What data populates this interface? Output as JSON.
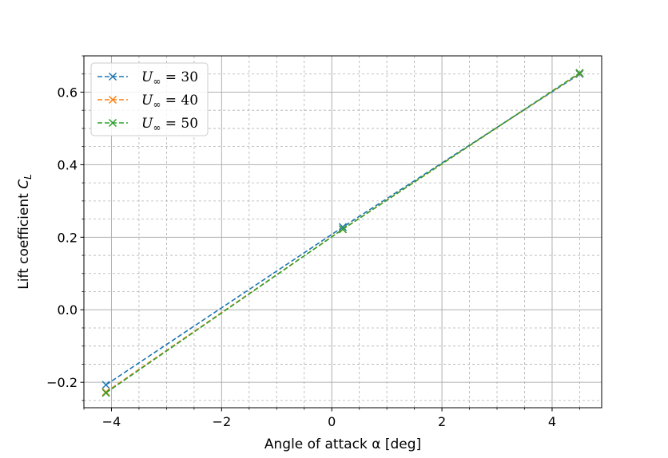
{
  "chart_data": {
    "type": "line",
    "title": "",
    "xlabel": "Angle of attack α [deg]",
    "ylabel": "Lift coefficient C_L",
    "xlim": [
      -4.5,
      4.9
    ],
    "ylim": [
      -0.27,
      0.7
    ],
    "x_ticks": [
      -4,
      -2,
      0,
      2,
      4
    ],
    "x_tick_labels": [
      "−4",
      "−2",
      "0",
      "2",
      "4"
    ],
    "y_ticks": [
      -0.2,
      0.0,
      0.2,
      0.4,
      0.6
    ],
    "y_tick_labels": [
      "−0.2",
      "0.0",
      "0.2",
      "0.4",
      "0.6"
    ],
    "x_minor_step": 0.5,
    "y_minor_step": 0.05,
    "grid": true,
    "legend_position": "top-left",
    "series": [
      {
        "name": "U∞ = 30",
        "color": "#1f77b4",
        "x": [
          -4.1,
          0.2,
          4.5
        ],
        "y": [
          -0.207,
          0.228,
          0.65
        ]
      },
      {
        "name": "U∞ = 40",
        "color": "#ff7f0e",
        "x": [
          -4.1,
          0.2,
          4.5
        ],
        "y": [
          -0.227,
          0.222,
          0.652
        ]
      },
      {
        "name": "U∞ = 50",
        "color": "#2ca02c",
        "x": [
          -4.1,
          0.2,
          4.5
        ],
        "y": [
          -0.229,
          0.222,
          0.653
        ]
      }
    ]
  }
}
